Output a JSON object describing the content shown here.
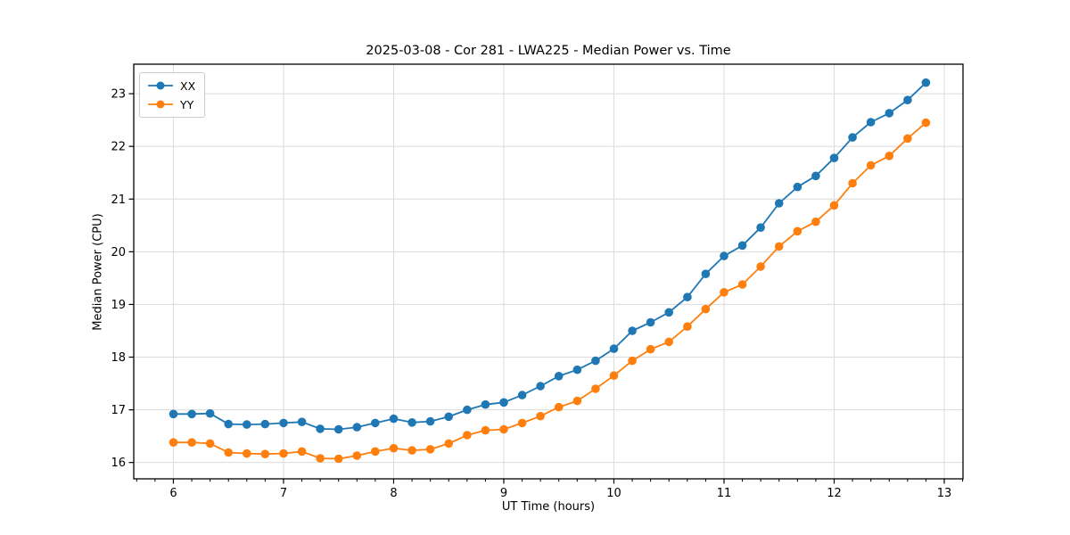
{
  "chart_data": {
    "type": "line",
    "title": "2025-03-08 - Cor 281 - LWA225 - Median Power vs. Time",
    "xlabel": "UT Time (hours)",
    "ylabel": "Median Power (CPU)",
    "xlim": [
      5.64,
      13.17
    ],
    "ylim": [
      15.69,
      23.56
    ],
    "xticks": [
      6,
      7,
      8,
      9,
      10,
      11,
      12,
      13
    ],
    "yticks": [
      16,
      17,
      18,
      19,
      20,
      21,
      22,
      23
    ],
    "x_minor_tick_step_hours": 0.1667,
    "grid": true,
    "legend_position": "upper-left",
    "grid_color": "#dcdcdc",
    "x": [
      6.0,
      6.167,
      6.333,
      6.5,
      6.667,
      6.833,
      7.0,
      7.167,
      7.333,
      7.5,
      7.667,
      7.833,
      8.0,
      8.167,
      8.333,
      8.5,
      8.667,
      8.833,
      9.0,
      9.167,
      9.333,
      9.5,
      9.667,
      9.833,
      10.0,
      10.167,
      10.333,
      10.5,
      10.667,
      10.833,
      11.0,
      11.167,
      11.333,
      11.5,
      11.667,
      11.833,
      12.0,
      12.167,
      12.333,
      12.5,
      12.667,
      12.833
    ],
    "series": [
      {
        "name": "XX",
        "color": "#1f77b4",
        "marker": "circle",
        "values": [
          16.92,
          16.92,
          16.93,
          16.73,
          16.72,
          16.73,
          16.75,
          16.77,
          16.64,
          16.63,
          16.67,
          16.75,
          16.83,
          16.76,
          16.78,
          16.87,
          17.0,
          17.1,
          17.14,
          17.28,
          17.45,
          17.64,
          17.76,
          17.93,
          18.16,
          18.5,
          18.66,
          18.85,
          19.14,
          19.58,
          19.92,
          20.12,
          20.46,
          20.92,
          21.23,
          21.44,
          21.78,
          22.17,
          22.46,
          22.63,
          22.88,
          23.21
        ]
      },
      {
        "name": "YY",
        "color": "#ff7f0e",
        "marker": "circle",
        "values": [
          16.38,
          16.38,
          16.36,
          16.19,
          16.17,
          16.16,
          16.17,
          16.21,
          16.08,
          16.07,
          16.13,
          16.21,
          16.27,
          16.23,
          16.25,
          16.36,
          16.52,
          16.61,
          16.63,
          16.75,
          16.88,
          17.05,
          17.17,
          17.4,
          17.65,
          17.93,
          18.15,
          18.29,
          18.58,
          18.91,
          19.23,
          19.38,
          19.72,
          20.1,
          20.39,
          20.57,
          20.88,
          21.3,
          21.64,
          21.82,
          22.15,
          22.45
        ]
      }
    ]
  }
}
